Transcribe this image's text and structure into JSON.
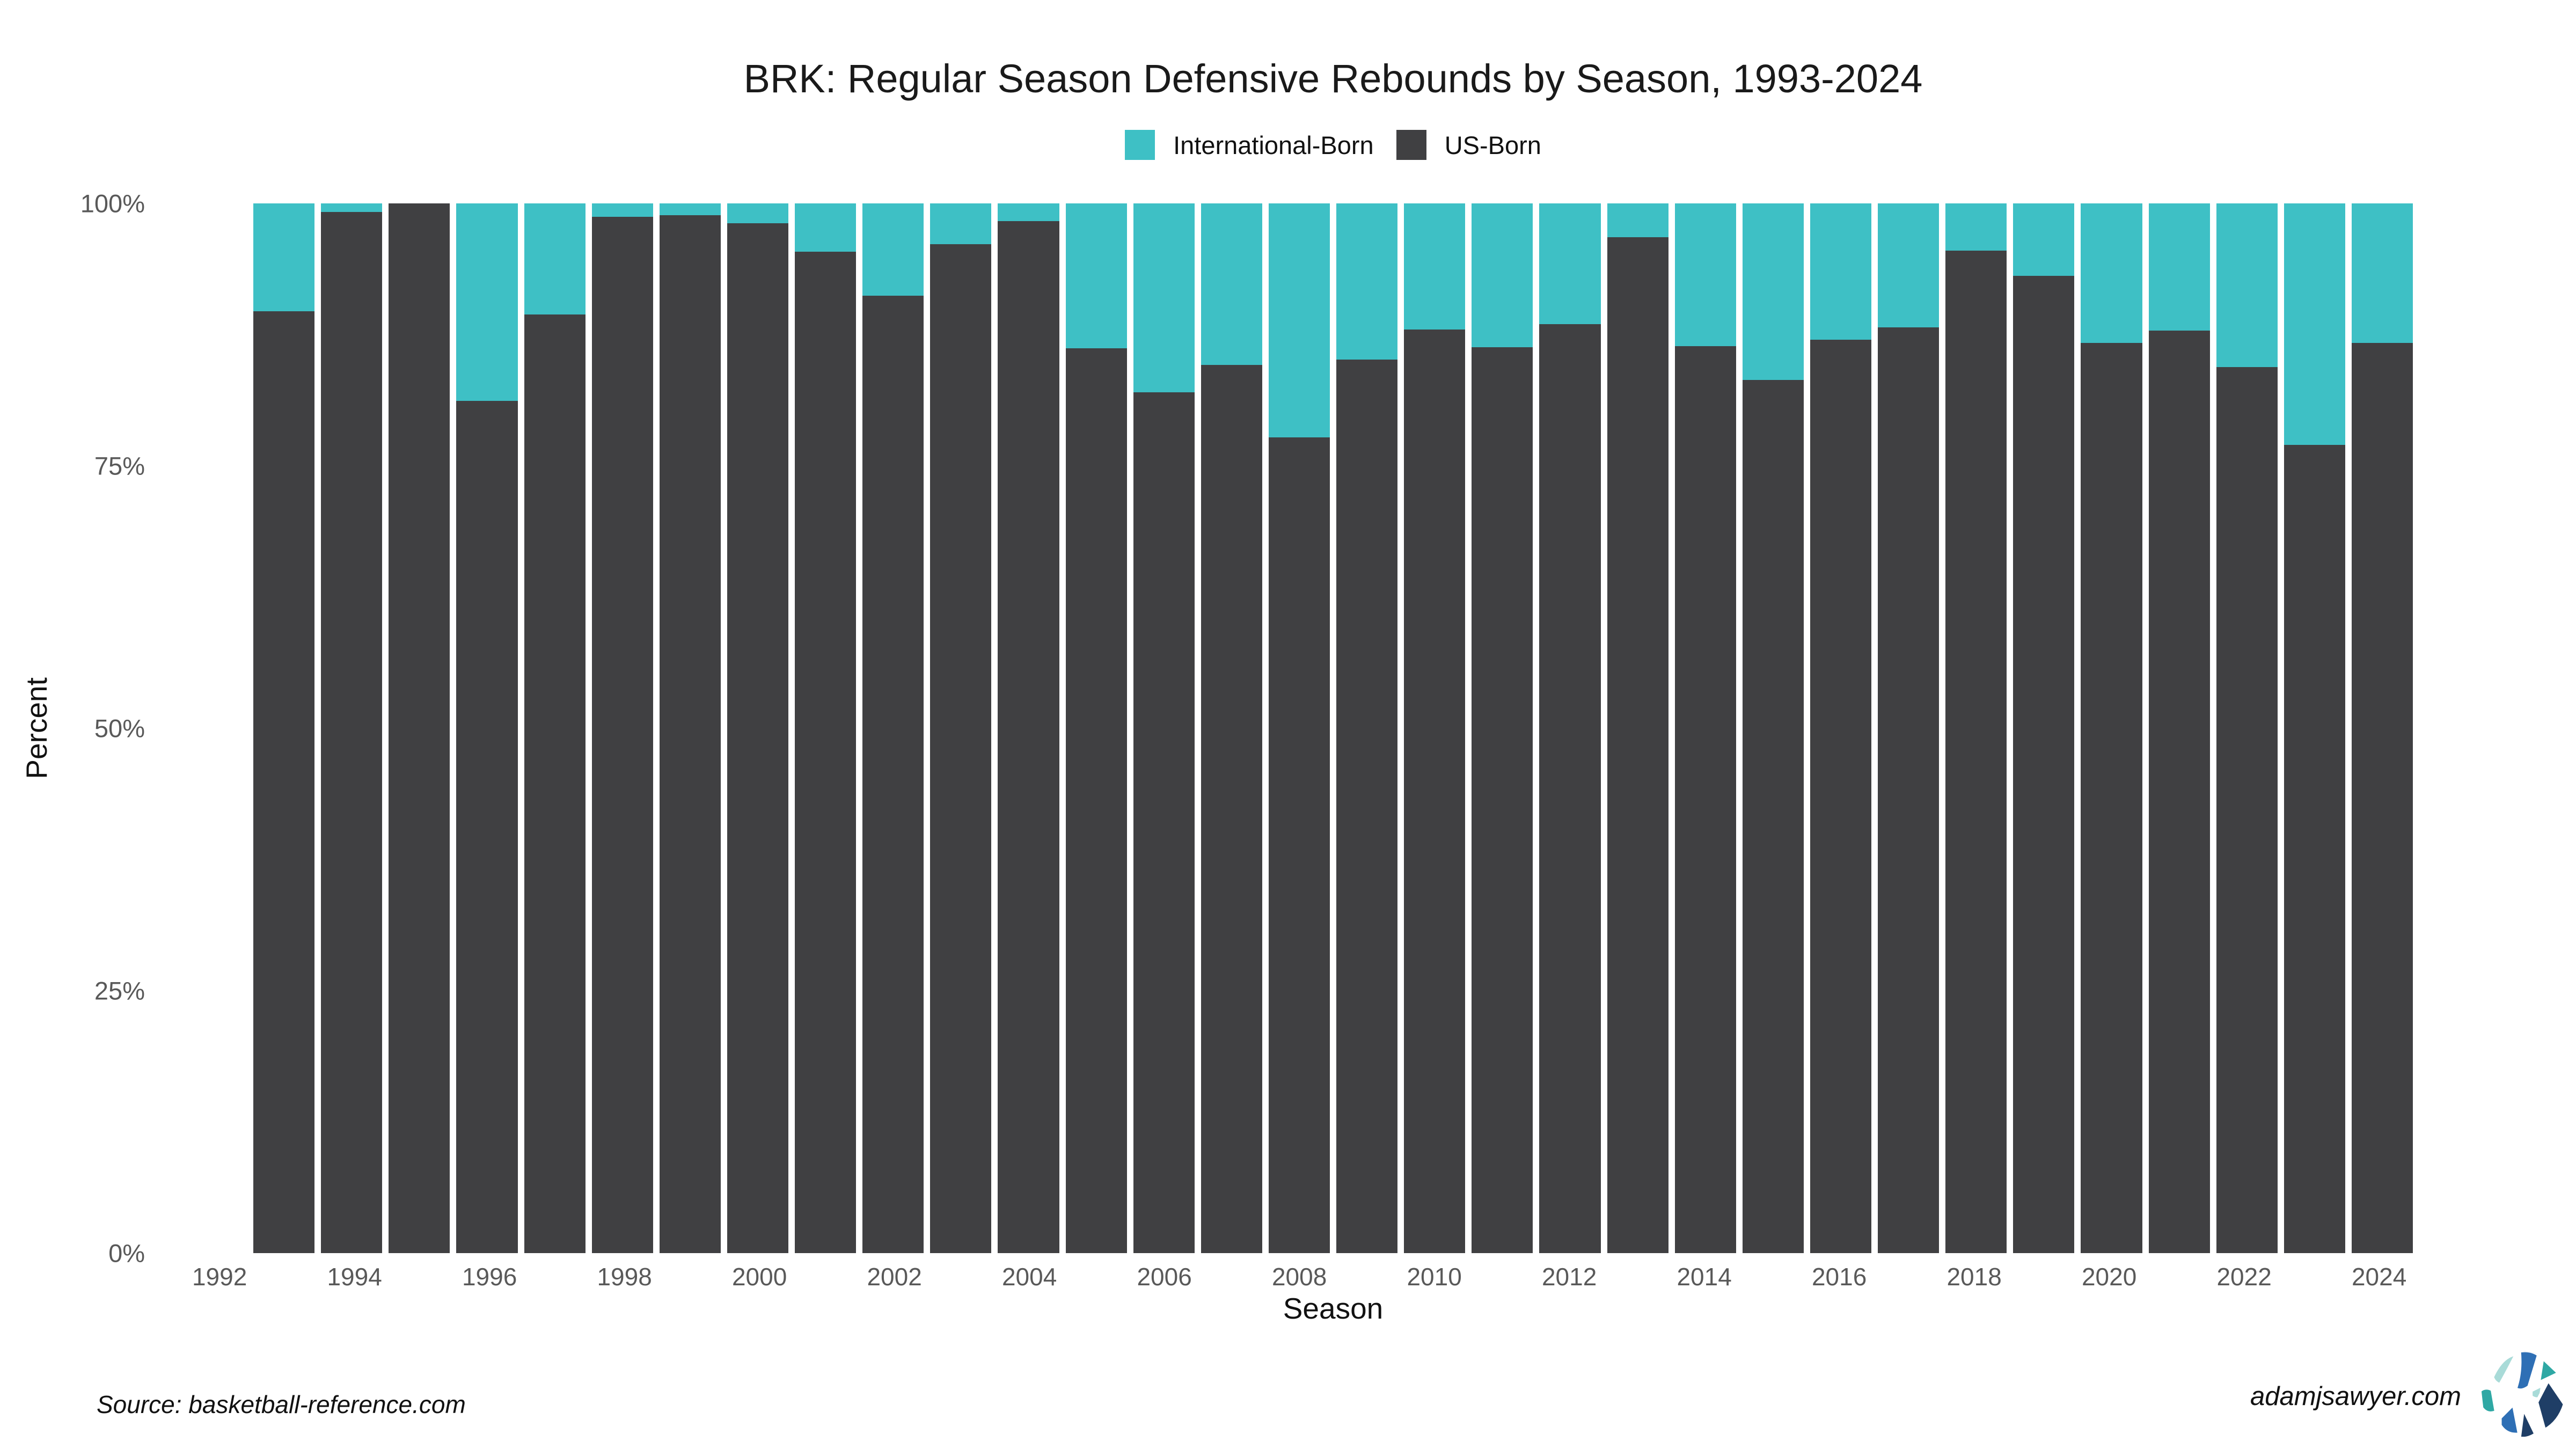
{
  "title": "BRK: Regular Season Defensive Rebounds by Season, 1993-2024",
  "legend": {
    "items": [
      {
        "label": "International-Born",
        "color": "#3EC0C5"
      },
      {
        "label": "US-Born",
        "color": "#404042"
      }
    ]
  },
  "y_axis": {
    "title": "Percent",
    "ticks": [
      {
        "label": "100%",
        "value": 100
      },
      {
        "label": "75%",
        "value": 75
      },
      {
        "label": "50%",
        "value": 50
      },
      {
        "label": "25%",
        "value": 25
      },
      {
        "label": "0%",
        "value": 0
      }
    ]
  },
  "x_axis": {
    "title": "Season",
    "ticks": [
      1992,
      1994,
      1996,
      1998,
      2000,
      2002,
      2004,
      2006,
      2008,
      2010,
      2012,
      2014,
      2016,
      2018,
      2020,
      2022,
      2024
    ]
  },
  "footer": {
    "source": "Source: basketball-reference.com",
    "site": "adamjsawyer.com"
  },
  "logo_colors": {
    "mint": "#A9DBD8",
    "teal": "#2FA8A4",
    "blue": "#2E6FB5",
    "navy": "#1F3E66"
  },
  "chart_data": {
    "type": "bar",
    "stacked": true,
    "title": "BRK: Regular Season Defensive Rebounds by Season, 1993-2024",
    "xlabel": "Season",
    "ylabel": "Percent",
    "ylim": [
      0,
      100
    ],
    "unit": "percent of defensive rebounds",
    "grid": false,
    "legend_position": "top-center",
    "categories": [
      1993,
      1994,
      1995,
      1996,
      1997,
      1998,
      1999,
      2000,
      2001,
      2002,
      2003,
      2004,
      2005,
      2006,
      2007,
      2008,
      2009,
      2010,
      2011,
      2012,
      2013,
      2014,
      2015,
      2016,
      2017,
      2018,
      2019,
      2020,
      2021,
      2022,
      2023,
      2024
    ],
    "series": [
      {
        "name": "International-Born",
        "color": "#3EC0C5",
        "values": [
          10.3,
          0.8,
          0,
          18.8,
          10.6,
          1.3,
          1.1,
          1.9,
          4.6,
          8.8,
          3.9,
          1.7,
          13.8,
          18.0,
          15.4,
          22.3,
          14.9,
          12.0,
          13.7,
          11.5,
          3.2,
          13.6,
          16.8,
          13.0,
          11.8,
          4.5,
          6.9,
          13.3,
          12.1,
          15.6,
          23.0,
          13.3
        ]
      },
      {
        "name": "US-Born",
        "color": "#404042",
        "values": [
          89.7,
          99.2,
          100,
          81.2,
          89.4,
          98.7,
          98.9,
          98.1,
          95.4,
          91.2,
          96.1,
          98.3,
          86.2,
          82.0,
          84.6,
          77.7,
          85.1,
          88.0,
          86.3,
          88.5,
          96.8,
          86.4,
          83.2,
          87.0,
          88.2,
          95.5,
          93.1,
          86.7,
          87.9,
          84.4,
          77.0,
          86.7
        ]
      }
    ]
  }
}
